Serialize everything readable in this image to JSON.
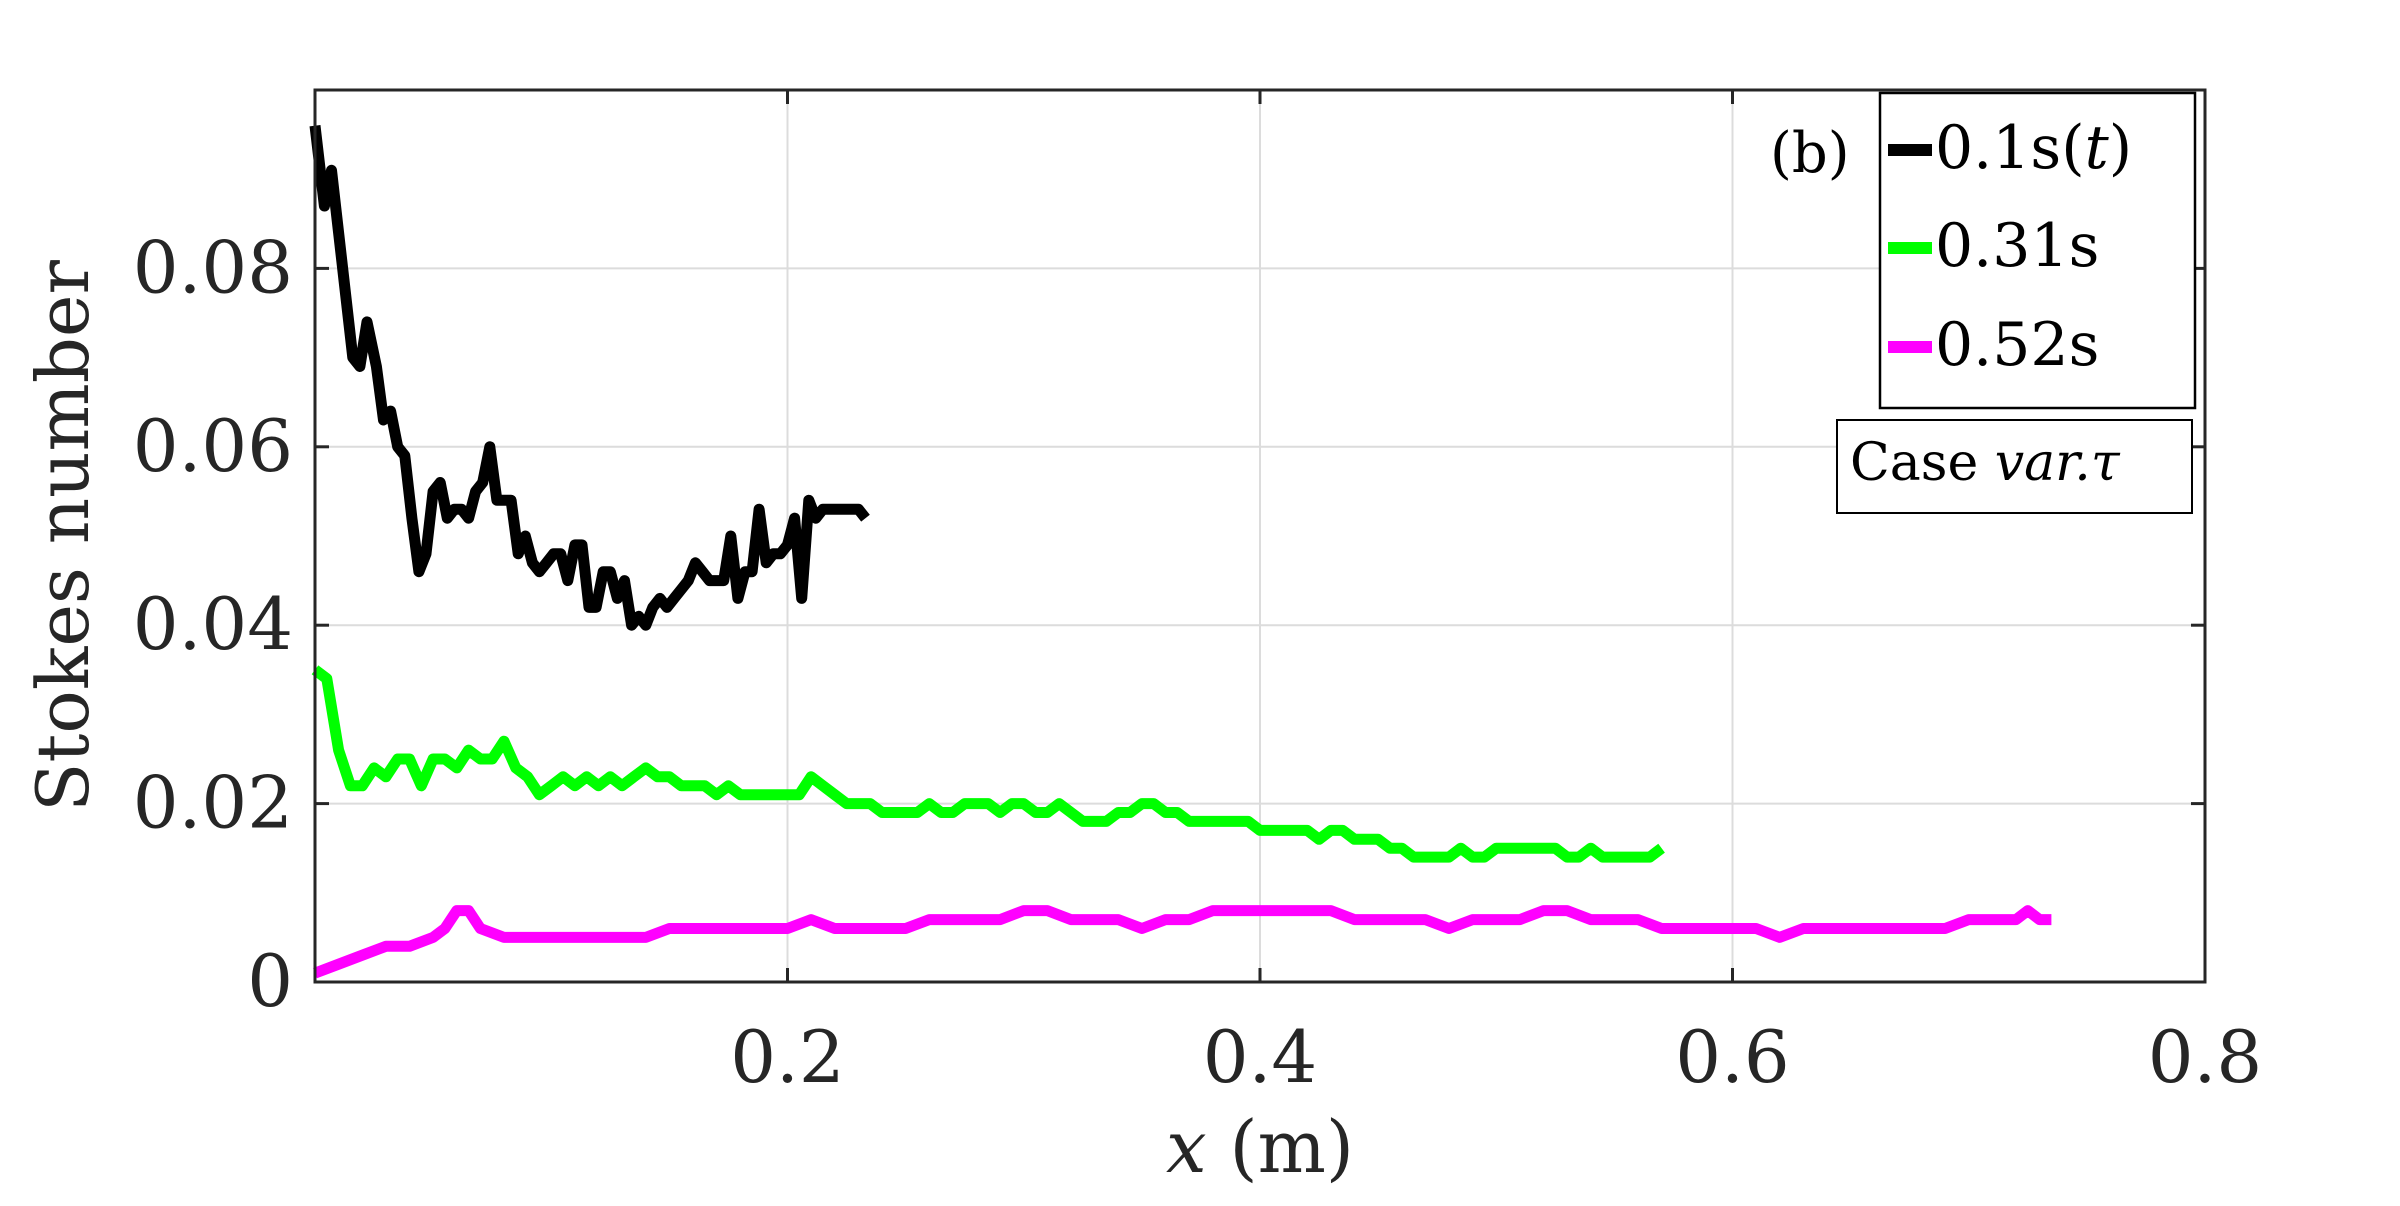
{
  "chart_data": {
    "type": "line",
    "title": "",
    "xlabel": "x (m)",
    "xlabel_var": "x",
    "xlabel_unit": " (m)",
    "ylabel": "Stokes number",
    "xlim": [
      0,
      0.8
    ],
    "ylim": [
      0,
      0.1
    ],
    "xticks": [
      0.2,
      0.4,
      0.6,
      0.8
    ],
    "xtick_labels": [
      "0.2",
      "0.4",
      "0.6",
      "0.8"
    ],
    "yticks": [
      0,
      0.02,
      0.04,
      0.06,
      0.08
    ],
    "ytick_labels": [
      "0",
      "0.02",
      "0.04",
      "0.06",
      "0.08"
    ],
    "grid": true,
    "legend_position": "top-right",
    "panel_label": "(b)",
    "annotation": {
      "prefix": "Case ",
      "italic": "var.τ"
    },
    "series": [
      {
        "name": "0.1s(t)",
        "name_prefix": "0.1s(",
        "name_italic": "t",
        "name_suffix": ")",
        "color": "#000000",
        "x": [
          0.0,
          0.004,
          0.007,
          0.01,
          0.013,
          0.016,
          0.019,
          0.022,
          0.026,
          0.029,
          0.032,
          0.035,
          0.038,
          0.041,
          0.044,
          0.047,
          0.05,
          0.053,
          0.056,
          0.059,
          0.062,
          0.065,
          0.068,
          0.071,
          0.074,
          0.077,
          0.08,
          0.083,
          0.086,
          0.089,
          0.092,
          0.095,
          0.098,
          0.101,
          0.104,
          0.107,
          0.11,
          0.113,
          0.116,
          0.119,
          0.122,
          0.125,
          0.128,
          0.131,
          0.134,
          0.137,
          0.14,
          0.143,
          0.146,
          0.149,
          0.152,
          0.155,
          0.158,
          0.161,
          0.164,
          0.167,
          0.17,
          0.173,
          0.176,
          0.179,
          0.182,
          0.185,
          0.188,
          0.191,
          0.194,
          0.197,
          0.2,
          0.203,
          0.206,
          0.209,
          0.212,
          0.215,
          0.218,
          0.221,
          0.224,
          0.227,
          0.23,
          0.233
        ],
        "y": [
          0.096,
          0.087,
          0.091,
          0.084,
          0.077,
          0.07,
          0.069,
          0.074,
          0.069,
          0.063,
          0.064,
          0.06,
          0.059,
          0.052,
          0.046,
          0.048,
          0.055,
          0.056,
          0.052,
          0.053,
          0.053,
          0.052,
          0.055,
          0.056,
          0.06,
          0.054,
          0.054,
          0.054,
          0.048,
          0.05,
          0.047,
          0.046,
          0.047,
          0.048,
          0.048,
          0.045,
          0.049,
          0.049,
          0.042,
          0.042,
          0.046,
          0.046,
          0.043,
          0.045,
          0.04,
          0.041,
          0.04,
          0.042,
          0.043,
          0.042,
          0.043,
          0.044,
          0.045,
          0.047,
          0.046,
          0.045,
          0.045,
          0.045,
          0.05,
          0.043,
          0.046,
          0.046,
          0.053,
          0.047,
          0.048,
          0.048,
          0.049,
          0.052,
          0.043,
          0.054,
          0.052,
          0.053,
          0.053,
          0.053,
          0.053,
          0.053,
          0.053,
          0.052
        ]
      },
      {
        "name": "0.31s",
        "color": "#00ff00",
        "x": [
          0.0,
          0.005,
          0.01,
          0.015,
          0.02,
          0.025,
          0.03,
          0.035,
          0.04,
          0.045,
          0.05,
          0.055,
          0.06,
          0.065,
          0.07,
          0.075,
          0.08,
          0.085,
          0.09,
          0.095,
          0.1,
          0.105,
          0.11,
          0.115,
          0.12,
          0.125,
          0.13,
          0.135,
          0.14,
          0.145,
          0.15,
          0.155,
          0.16,
          0.165,
          0.17,
          0.175,
          0.18,
          0.185,
          0.19,
          0.195,
          0.2,
          0.205,
          0.21,
          0.215,
          0.22,
          0.225,
          0.23,
          0.235,
          0.24,
          0.245,
          0.25,
          0.255,
          0.26,
          0.265,
          0.27,
          0.275,
          0.28,
          0.285,
          0.29,
          0.295,
          0.3,
          0.305,
          0.31,
          0.315,
          0.32,
          0.325,
          0.33,
          0.335,
          0.34,
          0.345,
          0.35,
          0.355,
          0.36,
          0.365,
          0.37,
          0.375,
          0.38,
          0.385,
          0.39,
          0.395,
          0.4,
          0.405,
          0.41,
          0.415,
          0.42,
          0.425,
          0.43,
          0.435,
          0.44,
          0.445,
          0.45,
          0.455,
          0.46,
          0.465,
          0.47,
          0.475,
          0.48,
          0.485,
          0.49,
          0.495,
          0.5,
          0.505,
          0.51,
          0.515,
          0.52,
          0.525,
          0.53,
          0.535,
          0.54,
          0.545,
          0.55,
          0.555,
          0.56,
          0.565,
          0.57
        ],
        "y": [
          0.035,
          0.034,
          0.026,
          0.022,
          0.022,
          0.024,
          0.023,
          0.025,
          0.025,
          0.022,
          0.025,
          0.025,
          0.024,
          0.026,
          0.025,
          0.025,
          0.027,
          0.024,
          0.023,
          0.021,
          0.022,
          0.023,
          0.022,
          0.023,
          0.022,
          0.023,
          0.022,
          0.023,
          0.024,
          0.023,
          0.023,
          0.022,
          0.022,
          0.022,
          0.021,
          0.022,
          0.021,
          0.021,
          0.021,
          0.021,
          0.021,
          0.021,
          0.023,
          0.022,
          0.021,
          0.02,
          0.02,
          0.02,
          0.019,
          0.019,
          0.019,
          0.019,
          0.02,
          0.019,
          0.019,
          0.02,
          0.02,
          0.02,
          0.019,
          0.02,
          0.02,
          0.019,
          0.019,
          0.02,
          0.019,
          0.018,
          0.018,
          0.018,
          0.019,
          0.019,
          0.02,
          0.02,
          0.019,
          0.019,
          0.018,
          0.018,
          0.018,
          0.018,
          0.018,
          0.018,
          0.017,
          0.017,
          0.017,
          0.017,
          0.017,
          0.016,
          0.017,
          0.017,
          0.016,
          0.016,
          0.016,
          0.015,
          0.015,
          0.014,
          0.014,
          0.014,
          0.014,
          0.015,
          0.014,
          0.014,
          0.015,
          0.015,
          0.015,
          0.015,
          0.015,
          0.015,
          0.014,
          0.014,
          0.015,
          0.014,
          0.014,
          0.014,
          0.014,
          0.014,
          0.015
        ]
      },
      {
        "name": "0.52s",
        "color": "#ff00ff",
        "x": [
          0.0,
          0.01,
          0.02,
          0.03,
          0.04,
          0.05,
          0.055,
          0.06,
          0.065,
          0.07,
          0.08,
          0.09,
          0.1,
          0.11,
          0.12,
          0.13,
          0.14,
          0.15,
          0.16,
          0.17,
          0.18,
          0.19,
          0.2,
          0.21,
          0.22,
          0.23,
          0.24,
          0.25,
          0.26,
          0.27,
          0.28,
          0.29,
          0.3,
          0.31,
          0.32,
          0.33,
          0.34,
          0.35,
          0.36,
          0.37,
          0.38,
          0.39,
          0.4,
          0.41,
          0.42,
          0.43,
          0.44,
          0.45,
          0.46,
          0.47,
          0.48,
          0.49,
          0.5,
          0.51,
          0.52,
          0.53,
          0.54,
          0.55,
          0.56,
          0.57,
          0.58,
          0.59,
          0.6,
          0.61,
          0.62,
          0.63,
          0.64,
          0.65,
          0.66,
          0.67,
          0.68,
          0.69,
          0.7,
          0.71,
          0.72,
          0.725,
          0.73,
          0.735
        ],
        "y": [
          0.001,
          0.002,
          0.003,
          0.004,
          0.004,
          0.005,
          0.006,
          0.008,
          0.008,
          0.006,
          0.005,
          0.005,
          0.005,
          0.005,
          0.005,
          0.005,
          0.005,
          0.006,
          0.006,
          0.006,
          0.006,
          0.006,
          0.006,
          0.007,
          0.006,
          0.006,
          0.006,
          0.006,
          0.007,
          0.007,
          0.007,
          0.007,
          0.008,
          0.008,
          0.007,
          0.007,
          0.007,
          0.006,
          0.007,
          0.007,
          0.008,
          0.008,
          0.008,
          0.008,
          0.008,
          0.008,
          0.007,
          0.007,
          0.007,
          0.007,
          0.006,
          0.007,
          0.007,
          0.007,
          0.008,
          0.008,
          0.007,
          0.007,
          0.007,
          0.006,
          0.006,
          0.006,
          0.006,
          0.006,
          0.005,
          0.006,
          0.006,
          0.006,
          0.006,
          0.006,
          0.006,
          0.006,
          0.007,
          0.007,
          0.007,
          0.008,
          0.007,
          0.007
        ]
      }
    ]
  }
}
